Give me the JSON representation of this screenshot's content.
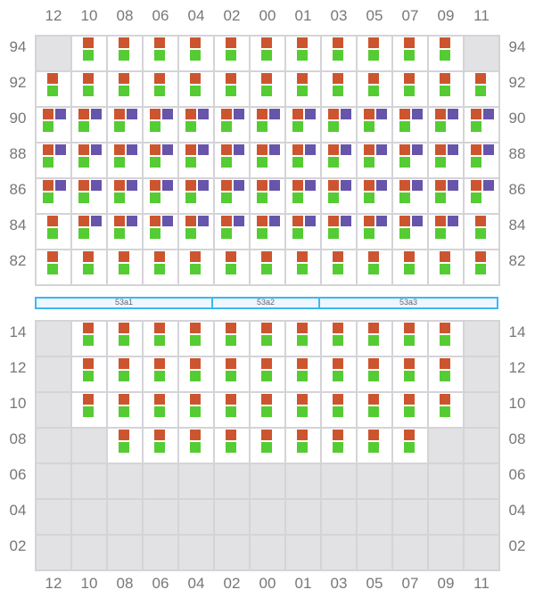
{
  "columns": [
    "12",
    "10",
    "08",
    "06",
    "04",
    "02",
    "00",
    "01",
    "03",
    "05",
    "07",
    "09",
    "11"
  ],
  "colors": {
    "orange": "#cc5530",
    "green": "#55cc33",
    "purple": "#6655aa",
    "empty": "#e2e2e4",
    "border": "#d4d4d8",
    "zone_border": "#3bb8f0"
  },
  "top_block": {
    "rows": [
      {
        "label": "94",
        "cells": [
          "e",
          "og",
          "og",
          "og",
          "og",
          "og",
          "og",
          "og",
          "og",
          "og",
          "og",
          "og",
          "e"
        ]
      },
      {
        "label": "92",
        "cells": [
          "og",
          "og",
          "og",
          "og",
          "og",
          "og",
          "og",
          "og",
          "og",
          "og",
          "og",
          "og",
          "og"
        ]
      },
      {
        "label": "90",
        "cells": [
          "opg",
          "opg",
          "opg",
          "opg",
          "opg",
          "opg",
          "opg",
          "opg",
          "opg",
          "opg",
          "opg",
          "opg",
          "opg"
        ]
      },
      {
        "label": "88",
        "cells": [
          "opg",
          "opg",
          "opg",
          "opg",
          "opg",
          "opg",
          "opg",
          "opg",
          "opg",
          "opg",
          "opg",
          "opg",
          "opg"
        ]
      },
      {
        "label": "86",
        "cells": [
          "opg",
          "opg",
          "opg",
          "opg",
          "opg",
          "opg",
          "opg",
          "opg",
          "opg",
          "opg",
          "opg",
          "opg",
          "opg"
        ]
      },
      {
        "label": "84",
        "cells": [
          "og",
          "opg",
          "opg",
          "opg",
          "opg",
          "opg",
          "opg",
          "opg",
          "opg",
          "opg",
          "opg",
          "opg",
          "og"
        ]
      },
      {
        "label": "82",
        "cells": [
          "og",
          "og",
          "og",
          "og",
          "og",
          "og",
          "og",
          "og",
          "og",
          "og",
          "og",
          "og",
          "og"
        ]
      }
    ]
  },
  "zones": [
    {
      "label": "53a1",
      "span": 5
    },
    {
      "label": "53a2",
      "span": 3
    },
    {
      "label": "53a3",
      "span": 5
    }
  ],
  "bottom_block": {
    "rows": [
      {
        "label": "14",
        "cells": [
          "e",
          "og",
          "og",
          "og",
          "og",
          "og",
          "og",
          "og",
          "og",
          "og",
          "og",
          "og",
          "e"
        ]
      },
      {
        "label": "12",
        "cells": [
          "e",
          "og",
          "og",
          "og",
          "og",
          "og",
          "og",
          "og",
          "og",
          "og",
          "og",
          "og",
          "e"
        ]
      },
      {
        "label": "10",
        "cells": [
          "e",
          "og",
          "og",
          "og",
          "og",
          "og",
          "og",
          "og",
          "og",
          "og",
          "og",
          "og",
          "e"
        ]
      },
      {
        "label": "08",
        "cells": [
          "e",
          "e",
          "og",
          "og",
          "og",
          "og",
          "og",
          "og",
          "og",
          "og",
          "og",
          "e",
          "e"
        ]
      },
      {
        "label": "06",
        "cells": [
          "e",
          "e",
          "e",
          "e",
          "e",
          "e",
          "e",
          "e",
          "e",
          "e",
          "e",
          "e",
          "e"
        ]
      },
      {
        "label": "04",
        "cells": [
          "e",
          "e",
          "e",
          "e",
          "e",
          "e",
          "e",
          "e",
          "e",
          "e",
          "e",
          "e",
          "e"
        ]
      },
      {
        "label": "02",
        "cells": [
          "e",
          "e",
          "e",
          "e",
          "e",
          "e",
          "e",
          "e",
          "e",
          "e",
          "e",
          "e",
          "e"
        ]
      }
    ]
  }
}
